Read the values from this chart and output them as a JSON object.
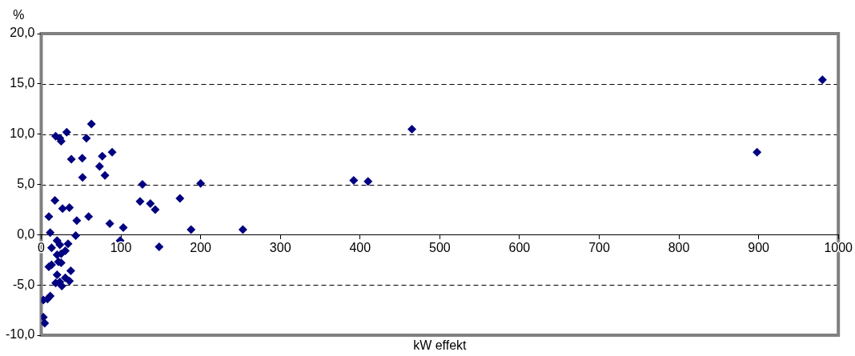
{
  "chart_data": {
    "type": "scatter",
    "xlabel": "kW effekt",
    "ylabel": "%",
    "marker": "diamond",
    "grid": "y",
    "xlim": [
      0,
      1000
    ],
    "xticks": [
      0,
      100,
      200,
      300,
      400,
      500,
      600,
      700,
      800,
      900,
      1000
    ],
    "ylim": [
      -10,
      20
    ],
    "yticks": [
      {
        "value": -10,
        "label": "-10,0"
      },
      {
        "value": -5,
        "label": "-5,0"
      },
      {
        "value": 0,
        "label": "0,0"
      },
      {
        "value": 5,
        "label": "5,0"
      },
      {
        "value": 10,
        "label": "10,0"
      },
      {
        "value": 15,
        "label": "15,0"
      },
      {
        "value": 20,
        "label": "20,0"
      }
    ],
    "series": [
      {
        "color": "#000080",
        "x": [
          980,
          898,
          465,
          392,
          410,
          253,
          200,
          174,
          188,
          148,
          127,
          124,
          137,
          143,
          103,
          99,
          86,
          89,
          80,
          63,
          56.7,
          18.2,
          25,
          32,
          23.4,
          37.8,
          51.5,
          76.6,
          73.2,
          51.9,
          17.2,
          26.8,
          35.4,
          9.6,
          44.6,
          59.5,
          11.3,
          43.3,
          19.9,
          13,
          23.4,
          33.7,
          30.2,
          19.9,
          25,
          21.6,
          25,
          9.6,
          13,
          37.1,
          19.9,
          30.2,
          23.4,
          25.9,
          35.4,
          18.2,
          11.3,
          2.7,
          7.9,
          2.7,
          4.4
        ],
        "values": [
          15.4,
          8.2,
          10.5,
          5.4,
          5.3,
          0.5,
          5.1,
          3.6,
          0.5,
          -1.2,
          5.0,
          3.3,
          3.1,
          2.5,
          0.7,
          -0.6,
          1.1,
          8.2,
          5.9,
          11.0,
          9.6,
          9.8,
          9.3,
          10.2,
          9.6,
          7.5,
          7.6,
          7.8,
          6.8,
          5.7,
          3.4,
          2.6,
          2.7,
          1.8,
          1.4,
          1.8,
          0.2,
          -0.1,
          -0.6,
          -1.3,
          -1.0,
          -0.9,
          -1.6,
          -2.0,
          -1.9,
          -2.7,
          -2.8,
          -3.2,
          -3.0,
          -3.6,
          -4.0,
          -4.3,
          -4.7,
          -5.1,
          -4.6,
          -4.8,
          -6.1,
          -6.5,
          -6.4,
          -8.2,
          -8.8
        ]
      }
    ]
  }
}
